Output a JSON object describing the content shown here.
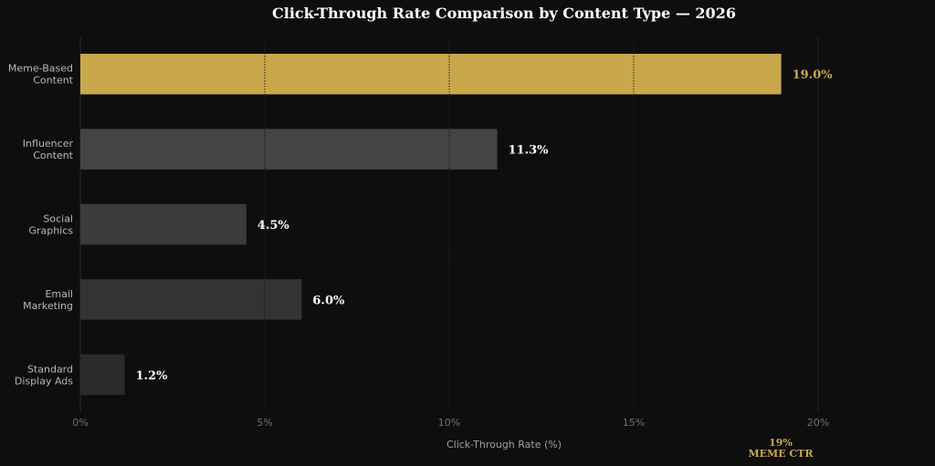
{
  "chart_data": {
    "type": "bar",
    "orientation": "horizontal",
    "title": "Click-Through Rate Comparison by Content Type — 2026",
    "xlabel": "Click-Through Rate (%)",
    "ylabel": "",
    "xlim": [
      0,
      20
    ],
    "xticks": [
      0,
      5,
      10,
      15,
      20
    ],
    "xtick_labels": [
      "0%",
      "5%",
      "10%",
      "15%",
      "20%"
    ],
    "grid": "vertical",
    "categories": [
      [
        "Meme-Based",
        "Content"
      ],
      [
        "Influencer",
        "Content"
      ],
      [
        "Social",
        "Graphics"
      ],
      [
        "Email",
        "Marketing"
      ],
      [
        "Standard",
        "Display Ads"
      ]
    ],
    "values": [
      19.0,
      11.3,
      4.5,
      6.0,
      1.2
    ],
    "value_labels": [
      "19.0%",
      "11.3%",
      "4.5%",
      "6.0%",
      "1.2%"
    ],
    "bar_colors": [
      "#c9a84c",
      "#444444",
      "#3b3b3b",
      "#333333",
      "#2b2b2b"
    ],
    "value_label_colors": [
      "#c9a84c",
      "#ffffff",
      "#ffffff",
      "#ffffff",
      "#ffffff"
    ],
    "annotation": {
      "line1": "19%",
      "line2": "MEME CTR",
      "color": "#c9a84c"
    }
  }
}
